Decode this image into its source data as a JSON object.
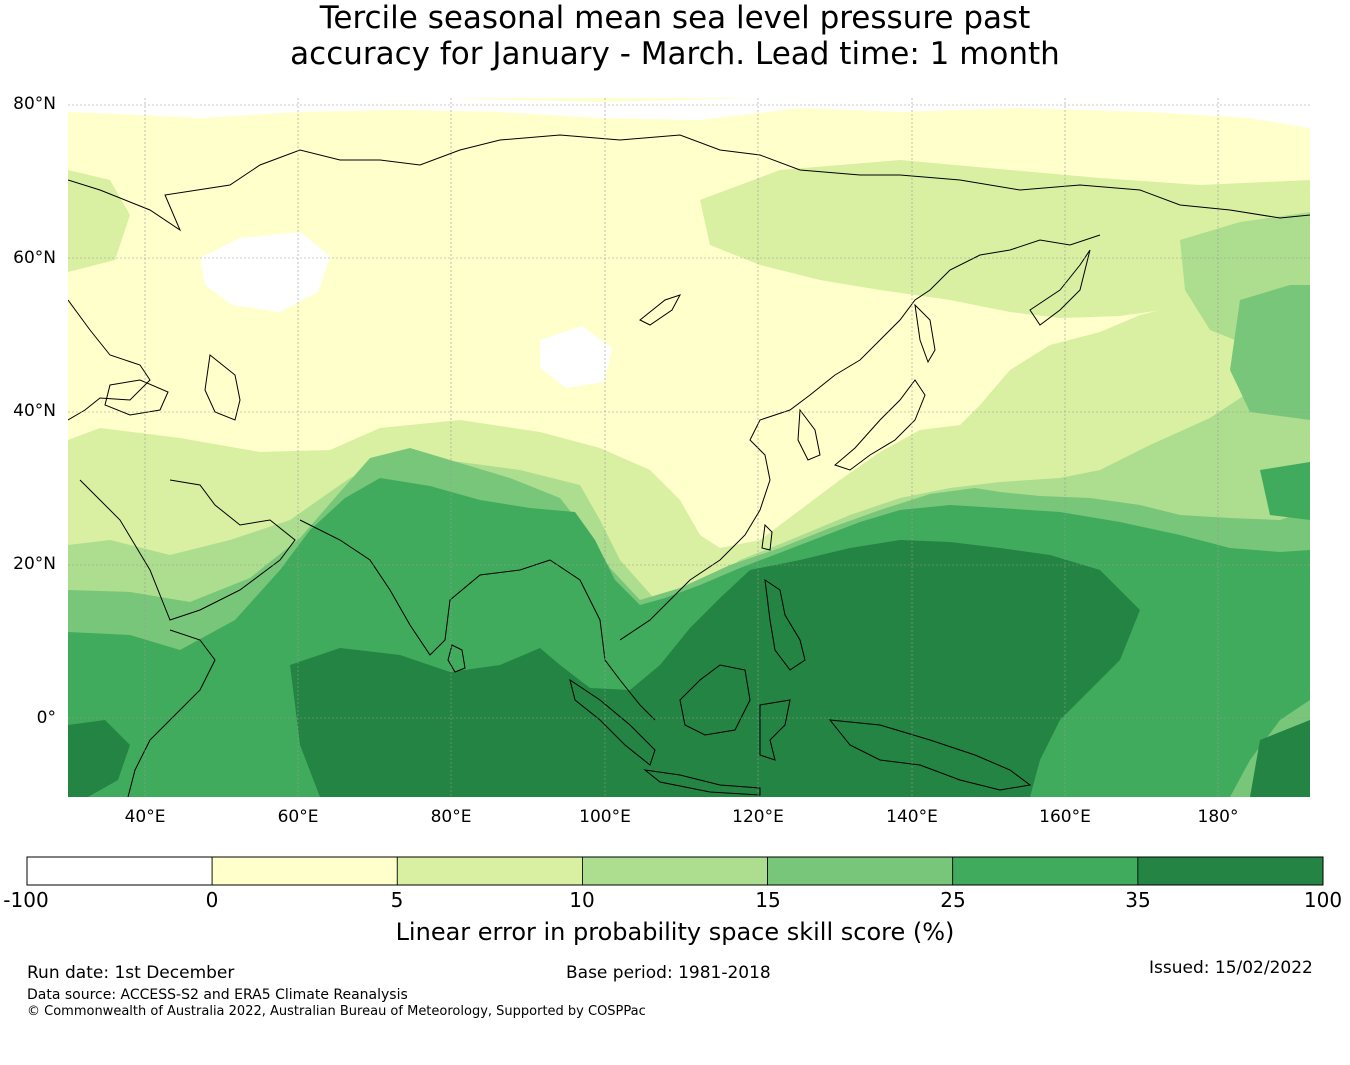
{
  "title": {
    "line1": "Tercile seasonal mean sea level pressure past",
    "line2": "accuracy for January - March. Lead time: 1 month"
  },
  "map": {
    "lat_labels": [
      "80°N",
      "60°N",
      "40°N",
      "20°N",
      "0°"
    ],
    "lon_labels": [
      "40°E",
      "60°E",
      "80°E",
      "100°E",
      "120°E",
      "140°E",
      "160°E",
      "180°"
    ],
    "colors": {
      "white": "#ffffff",
      "yellow": "#ffffcc",
      "light_green": "#d9f0a3",
      "pale_green": "#addd8e",
      "mid_green": "#78c679",
      "green": "#41ab5d",
      "dark_green": "#238443",
      "grid": "#999999",
      "coast": "#000000"
    }
  },
  "colorbar": {
    "ticks": [
      "-100",
      "0",
      "5",
      "10",
      "15",
      "25",
      "35",
      "100"
    ],
    "colors": [
      "#ffffff",
      "#ffffcc",
      "#d9f0a3",
      "#addd8e",
      "#78c679",
      "#41ab5d",
      "#238443"
    ],
    "label": "Linear error in probability space skill score (%)"
  },
  "footer": {
    "run_date": "Run date: 1st December",
    "base_period": "Base period: 1981-2018",
    "issued": "Issued: 15/02/2022",
    "data_source": "Data source: ACCESS-S2 and ERA5 Climate Reanalysis",
    "copyright": "© Commonwealth of Australia 2022, Australian Bureau of Meteorology, Supported by COSPPac"
  }
}
